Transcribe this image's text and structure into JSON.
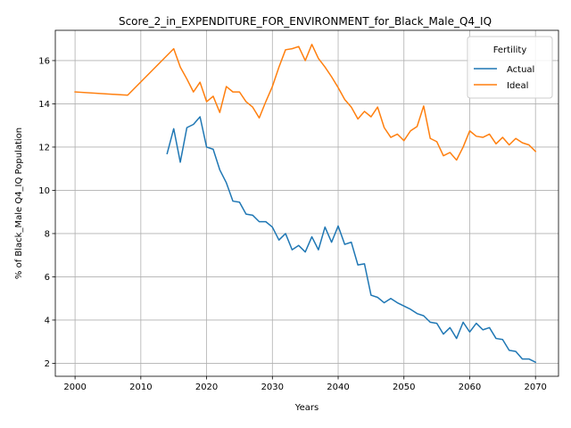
{
  "chart_data": {
    "type": "line",
    "title": "Score_2_in_EXPENDITURE_FOR_ENVIRONMENT_for_Black_Male_Q4_IQ",
    "xlabel": "Years",
    "ylabel": "% of Black_Male Q4_IQ Population",
    "xlim": [
      1997,
      2073.5
    ],
    "ylim": [
      1.4,
      17.4
    ],
    "xticks": [
      2000,
      2010,
      2020,
      2030,
      2040,
      2050,
      2060,
      2070
    ],
    "yticks": [
      2,
      4,
      6,
      8,
      10,
      12,
      14,
      16
    ],
    "grid": true,
    "legend": {
      "title": "Fertility",
      "placement": "top-right"
    },
    "series": [
      {
        "name": "Actual",
        "color": "#1f77b4",
        "x": [
          2014,
          2015,
          2016,
          2017,
          2018,
          2019,
          2020,
          2021,
          2022,
          2023,
          2024,
          2025,
          2026,
          2027,
          2028,
          2029,
          2030,
          2031,
          2032,
          2033,
          2034,
          2035,
          2036,
          2037,
          2038,
          2039,
          2040,
          2041,
          2042,
          2043,
          2044,
          2045,
          2046,
          2047,
          2048,
          2049,
          2050,
          2051,
          2052,
          2053,
          2054,
          2055,
          2056,
          2057,
          2058,
          2059,
          2060,
          2061,
          2062,
          2063,
          2064,
          2065,
          2066,
          2067,
          2068,
          2069,
          2070
        ],
        "y": [
          11.7,
          12.85,
          11.3,
          12.9,
          13.05,
          13.4,
          12.0,
          11.9,
          10.95,
          10.35,
          9.5,
          9.45,
          8.9,
          8.85,
          8.55,
          8.55,
          8.3,
          7.7,
          8.0,
          7.25,
          7.45,
          7.15,
          7.85,
          7.25,
          8.3,
          7.6,
          8.35,
          7.5,
          7.6,
          6.55,
          6.6,
          5.15,
          5.05,
          4.8,
          5.0,
          4.8,
          4.65,
          4.5,
          4.3,
          4.2,
          3.9,
          3.85,
          3.35,
          3.65,
          3.15,
          3.9,
          3.45,
          3.85,
          3.55,
          3.65,
          3.15,
          3.1,
          2.6,
          2.55,
          2.2,
          2.2,
          2.05
        ]
      },
      {
        "name": "Ideal",
        "color": "#ff7f0e",
        "x": [
          2000,
          2008,
          2015,
          2016,
          2017,
          2018,
          2019,
          2020,
          2021,
          2022,
          2023,
          2024,
          2025,
          2026,
          2027,
          2028,
          2029,
          2030,
          2031,
          2032,
          2033,
          2034,
          2035,
          2036,
          2037,
          2038,
          2039,
          2040,
          2041,
          2042,
          2043,
          2044,
          2045,
          2046,
          2047,
          2048,
          2049,
          2050,
          2051,
          2052,
          2053,
          2054,
          2055,
          2056,
          2057,
          2058,
          2059,
          2060,
          2061,
          2062,
          2063,
          2064,
          2065,
          2066,
          2067,
          2068,
          2069,
          2070
        ],
        "y": [
          14.55,
          14.4,
          16.55,
          15.7,
          15.15,
          14.55,
          15.0,
          14.1,
          14.35,
          13.6,
          14.8,
          14.55,
          14.55,
          14.1,
          13.85,
          13.35,
          14.1,
          14.8,
          15.7,
          16.5,
          16.55,
          16.65,
          16.0,
          16.75,
          16.1,
          15.7,
          15.25,
          14.75,
          14.2,
          13.85,
          13.3,
          13.65,
          13.4,
          13.85,
          12.9,
          12.45,
          12.6,
          12.3,
          12.75,
          12.95,
          13.9,
          12.4,
          12.25,
          11.6,
          11.75,
          11.4,
          12.0,
          12.75,
          12.5,
          12.45,
          12.6,
          12.15,
          12.45,
          12.1,
          12.4,
          12.2,
          12.1,
          11.8
        ]
      }
    ]
  }
}
